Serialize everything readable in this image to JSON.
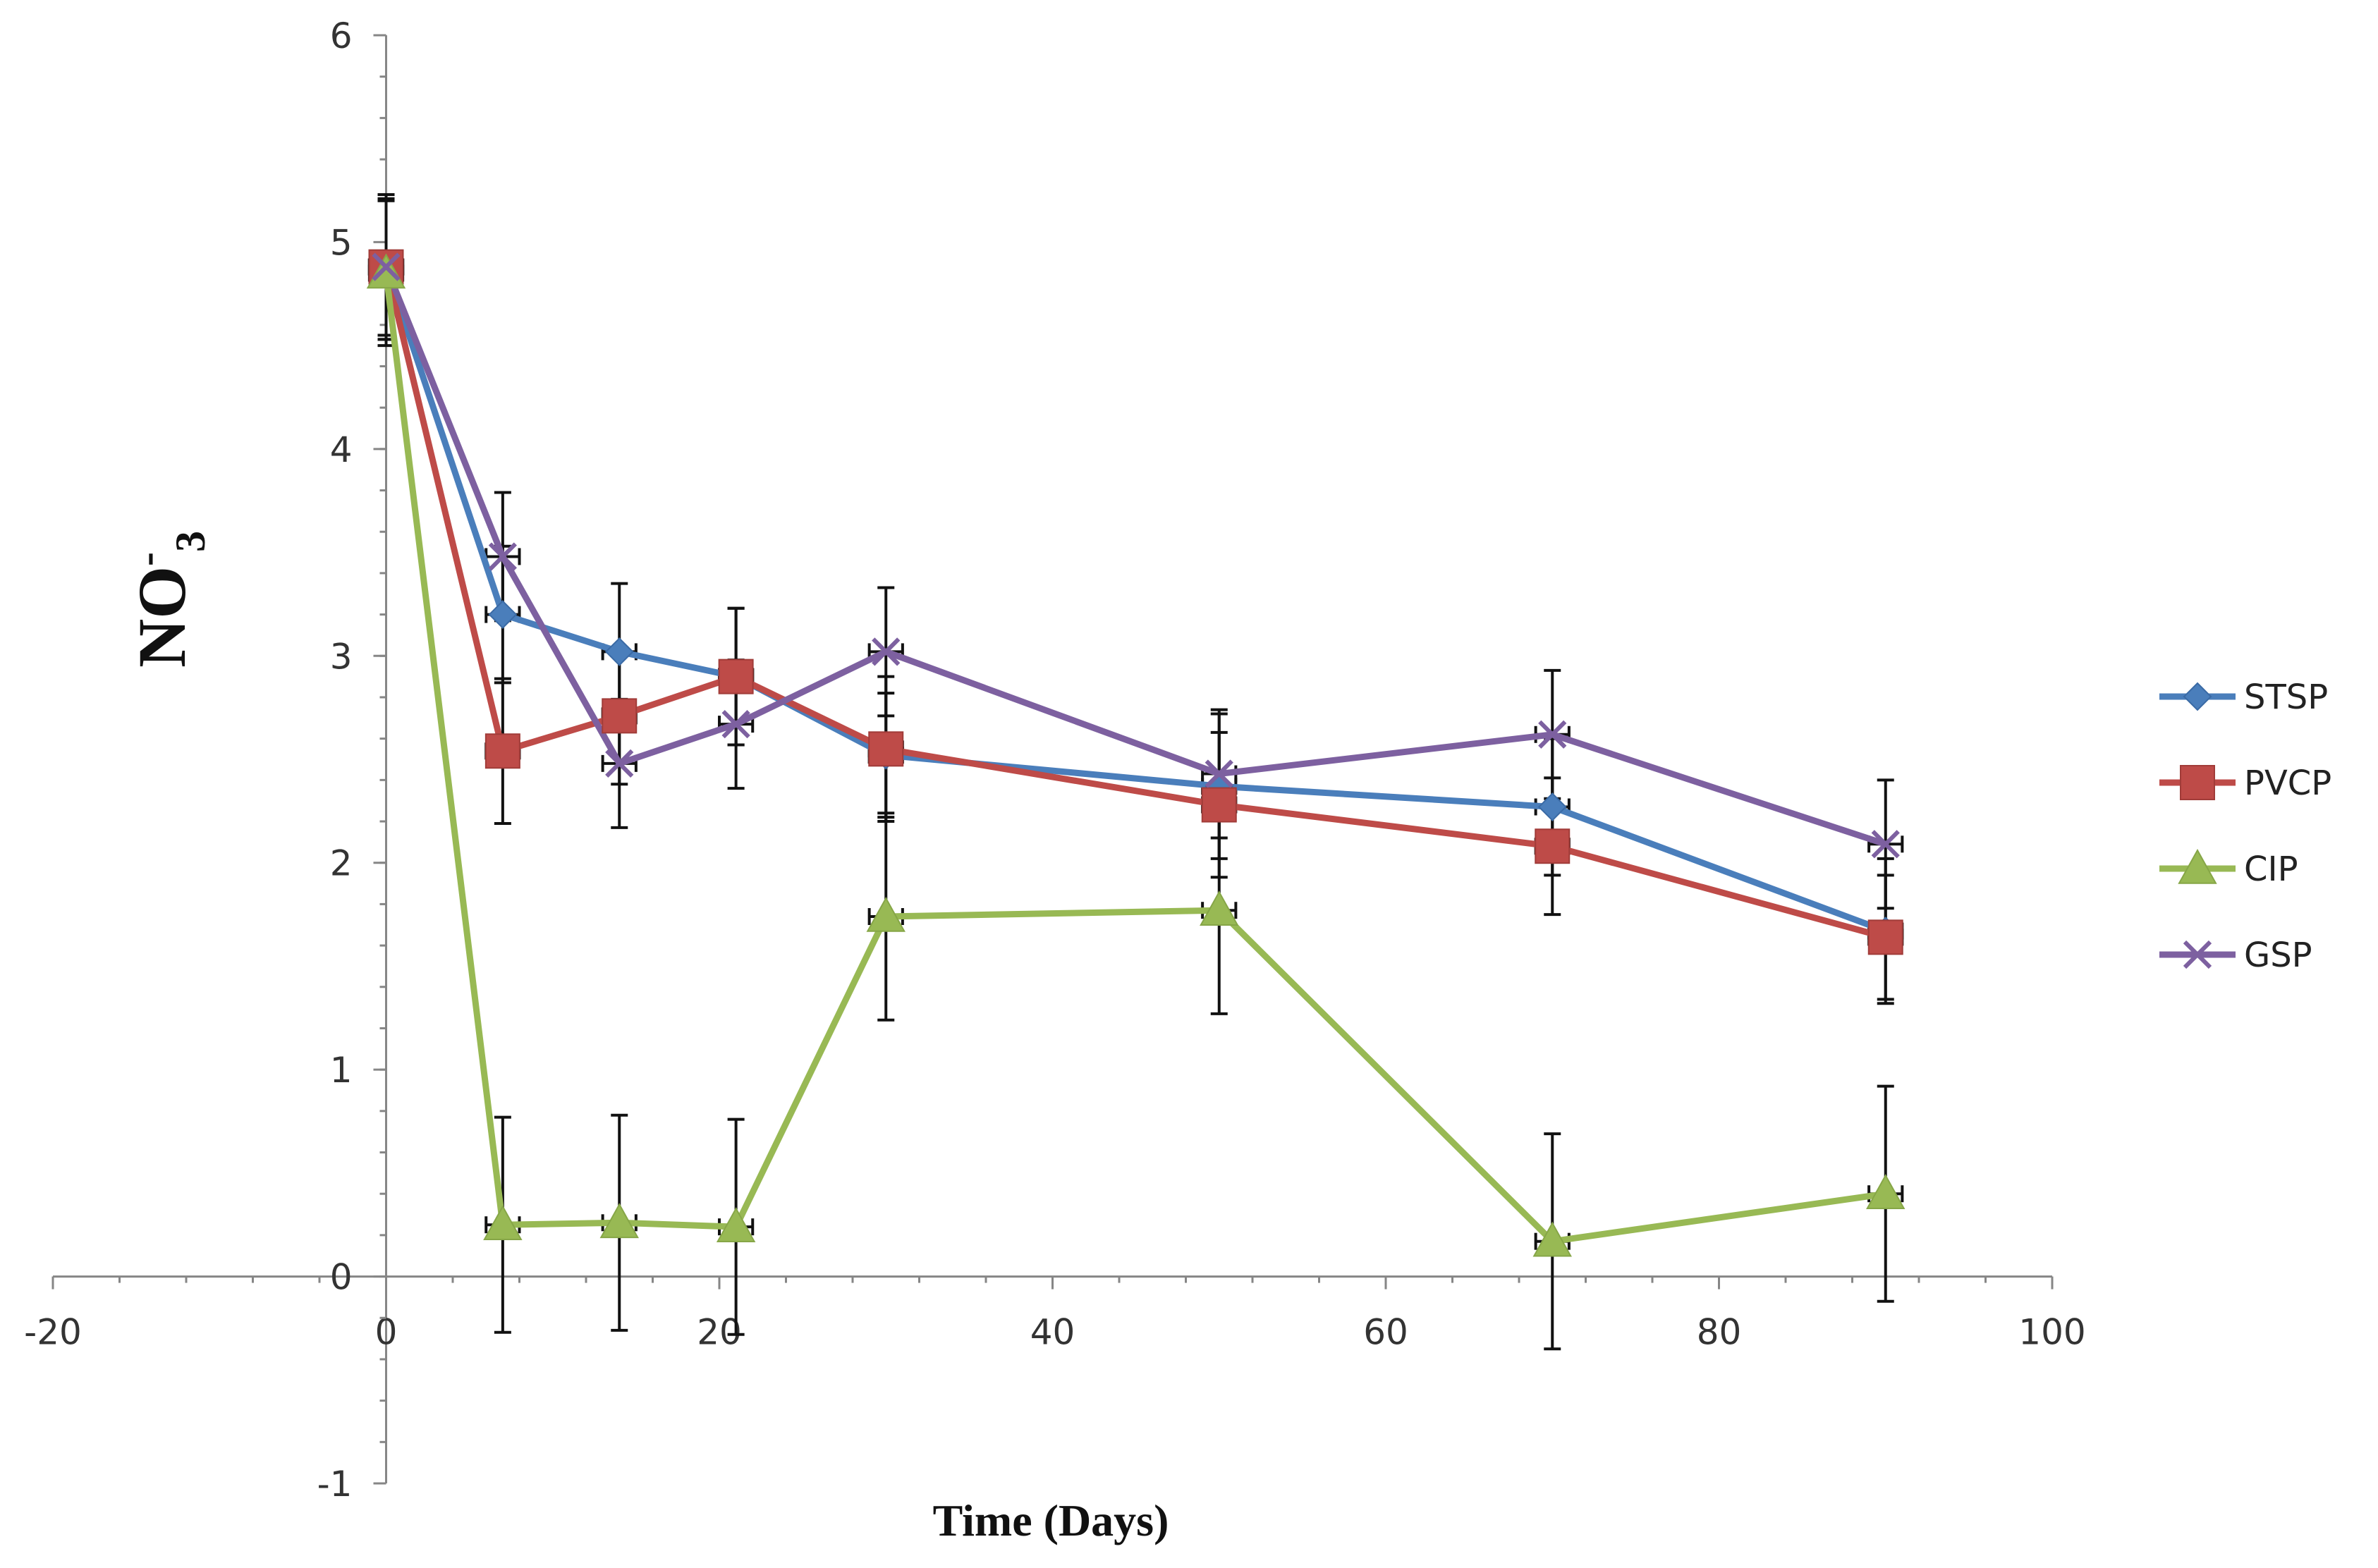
{
  "chart_data": {
    "type": "line",
    "title": "",
    "xlabel": "Time (Days)",
    "ylabel_main": "NO",
    "ylabel_sup": "-",
    "ylabel_sub": "3",
    "xlim": [
      -20,
      100
    ],
    "ylim": [
      -1,
      6
    ],
    "x_major_ticks": [
      -20,
      0,
      20,
      40,
      60,
      80,
      100
    ],
    "x_tick_labels": [
      "-20",
      "0",
      "20",
      "40",
      "60",
      "80",
      "100"
    ],
    "x_minor_step": 4,
    "y_major_ticks": [
      -1,
      0,
      1,
      2,
      3,
      4,
      5,
      6
    ],
    "y_tick_labels": [
      "-1",
      "0",
      "1",
      "2",
      "3",
      "4",
      "5",
      "6"
    ],
    "y_minor_step": 0.2,
    "grid": false,
    "legend_position": "right",
    "x": [
      0,
      7,
      14,
      21,
      30,
      50,
      70,
      90
    ],
    "xerr": 1,
    "series": [
      {
        "name": "STSP",
        "color": "#4a7ebb",
        "marker": "diamond",
        "values": [
          4.88,
          3.2,
          3.02,
          2.9,
          2.52,
          2.37,
          2.27,
          1.67
        ],
        "errors": [
          0.35,
          0.33,
          0.33,
          0.33,
          0.3,
          0.35,
          0.33,
          0.35
        ]
      },
      {
        "name": "PVCP",
        "color": "#be4b48",
        "marker": "square",
        "values": [
          4.88,
          2.54,
          2.71,
          2.9,
          2.55,
          2.28,
          2.08,
          1.64
        ],
        "errors": [
          0.33,
          0.35,
          0.33,
          0.33,
          0.35,
          0.35,
          0.33,
          0.3
        ]
      },
      {
        "name": "CIP",
        "color": "#98b954",
        "marker": "triangle",
        "values": [
          4.85,
          0.25,
          0.26,
          0.24,
          1.74,
          1.77,
          0.17,
          0.4
        ],
        "errors": [
          0.35,
          0.52,
          0.52,
          0.52,
          0.5,
          0.5,
          0.52,
          0.52
        ]
      },
      {
        "name": "GSP",
        "color": "#7d60a0",
        "marker": "x",
        "values": [
          4.88,
          3.48,
          2.48,
          2.67,
          3.02,
          2.43,
          2.62,
          2.09
        ],
        "errors": [
          0.35,
          0.31,
          0.31,
          0.31,
          0.31,
          0.31,
          0.31,
          0.31
        ]
      }
    ]
  }
}
